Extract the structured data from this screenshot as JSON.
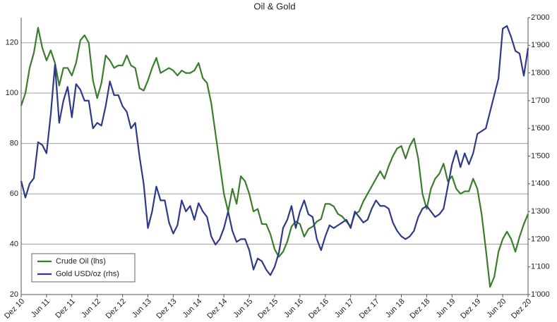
{
  "chart_data": {
    "type": "line",
    "title": "Oil & Gold",
    "categories": [
      "Dez 10",
      null,
      null,
      null,
      null,
      null,
      "Jun 11",
      null,
      null,
      null,
      null,
      null,
      "Dez 11",
      null,
      null,
      null,
      null,
      null,
      "Jun 12",
      null,
      null,
      null,
      null,
      null,
      "Dez 12",
      null,
      null,
      null,
      null,
      null,
      "Jun 13",
      null,
      null,
      null,
      null,
      null,
      "Dez 13",
      null,
      null,
      null,
      null,
      null,
      "Jun 14",
      null,
      null,
      null,
      null,
      null,
      "Dez 14",
      null,
      null,
      null,
      null,
      null,
      "Jun 15",
      null,
      null,
      null,
      null,
      null,
      "Dez 15",
      null,
      null,
      null,
      null,
      null,
      "Jun 16",
      null,
      null,
      null,
      null,
      null,
      "Dez 16",
      null,
      null,
      null,
      null,
      null,
      "Jun 17",
      null,
      null,
      null,
      null,
      null,
      "Dez 17",
      null,
      null,
      null,
      null,
      null,
      "Jun 18",
      null,
      null,
      null,
      null,
      null,
      "Dez 18",
      null,
      null,
      null,
      null,
      null,
      "Jun 19",
      null,
      null,
      null,
      null,
      null,
      "Dez 19",
      null,
      null,
      null,
      null,
      null,
      "Jun 20",
      null,
      null,
      null,
      null,
      null,
      "Dez 20"
    ],
    "series": [
      {
        "name": "Crude Oil (lhs)",
        "color": "#3a7d2c",
        "values": [
          95,
          100,
          110,
          116,
          126,
          118,
          113,
          117,
          112,
          103,
          110,
          110,
          107,
          112,
          121,
          123,
          120,
          105,
          98,
          104,
          115,
          113,
          110,
          111,
          111,
          115,
          111,
          110,
          102,
          101,
          105,
          110,
          114,
          108,
          109,
          110,
          109,
          107,
          109,
          108,
          108,
          109,
          112,
          106,
          104,
          96,
          84,
          72,
          60,
          53,
          62,
          56,
          67,
          65,
          60,
          53,
          54,
          48,
          48,
          44,
          38,
          35,
          37,
          41,
          47,
          49,
          48,
          43,
          46,
          47,
          49,
          50,
          56,
          56,
          55,
          52,
          51,
          49,
          47,
          52,
          53,
          57,
          60,
          63,
          66,
          69,
          66,
          71,
          75,
          78,
          79,
          74,
          79,
          82,
          74,
          60,
          54,
          62,
          66,
          68,
          72,
          65,
          67,
          62,
          60,
          61,
          61,
          66,
          62,
          52,
          38,
          23,
          27,
          37,
          42,
          45,
          42,
          37,
          43,
          48,
          52
        ]
      },
      {
        "name": "Gold USD/oz (rhs)",
        "color": "#2e3a87",
        "axis": "y2",
        "values": [
          1410,
          1350,
          1400,
          1420,
          1550,
          1540,
          1510,
          1650,
          1830,
          1620,
          1700,
          1750,
          1640,
          1760,
          1740,
          1700,
          1700,
          1600,
          1620,
          1610,
          1680,
          1770,
          1720,
          1720,
          1680,
          1660,
          1600,
          1620,
          1500,
          1400,
          1240,
          1300,
          1390,
          1340,
          1340,
          1260,
          1220,
          1250,
          1340,
          1300,
          1320,
          1270,
          1330,
          1300,
          1280,
          1210,
          1180,
          1200,
          1240,
          1300,
          1230,
          1190,
          1200,
          1200,
          1160,
          1090,
          1130,
          1120,
          1090,
          1070,
          1100,
          1150,
          1240,
          1270,
          1320,
          1240,
          1300,
          1340,
          1290,
          1280,
          1200,
          1160,
          1210,
          1250,
          1240,
          1250,
          1260,
          1270,
          1240,
          1300,
          1280,
          1260,
          1270,
          1310,
          1340,
          1320,
          1320,
          1310,
          1260,
          1230,
          1210,
          1200,
          1210,
          1230,
          1280,
          1310,
          1320,
          1300,
          1280,
          1290,
          1310,
          1390,
          1470,
          1520,
          1460,
          1510,
          1470,
          1510,
          1580,
          1590,
          1600,
          1660,
          1720,
          1780,
          1960,
          1970,
          1930,
          1880,
          1870,
          1790,
          1890
        ]
      }
    ],
    "ylim": [
      20,
      130
    ],
    "yticks": [
      20,
      40,
      60,
      80,
      100,
      120
    ],
    "y2lim": [
      1000,
      2000
    ],
    "y2ticks": [
      {
        "value": 1000,
        "label": "1'000"
      },
      {
        "value": 1100,
        "label": "1'100"
      },
      {
        "value": 1200,
        "label": "1'200"
      },
      {
        "value": 1300,
        "label": "1'300"
      },
      {
        "value": 1400,
        "label": "1'400"
      },
      {
        "value": 1500,
        "label": "1'500"
      },
      {
        "value": 1600,
        "label": "1'600"
      },
      {
        "value": 1700,
        "label": "1'700"
      },
      {
        "value": 1800,
        "label": "1'800"
      },
      {
        "value": 1900,
        "label": "1'900"
      },
      {
        "value": 2000,
        "label": "2'000"
      }
    ],
    "grid": true,
    "legend": "lower left"
  }
}
